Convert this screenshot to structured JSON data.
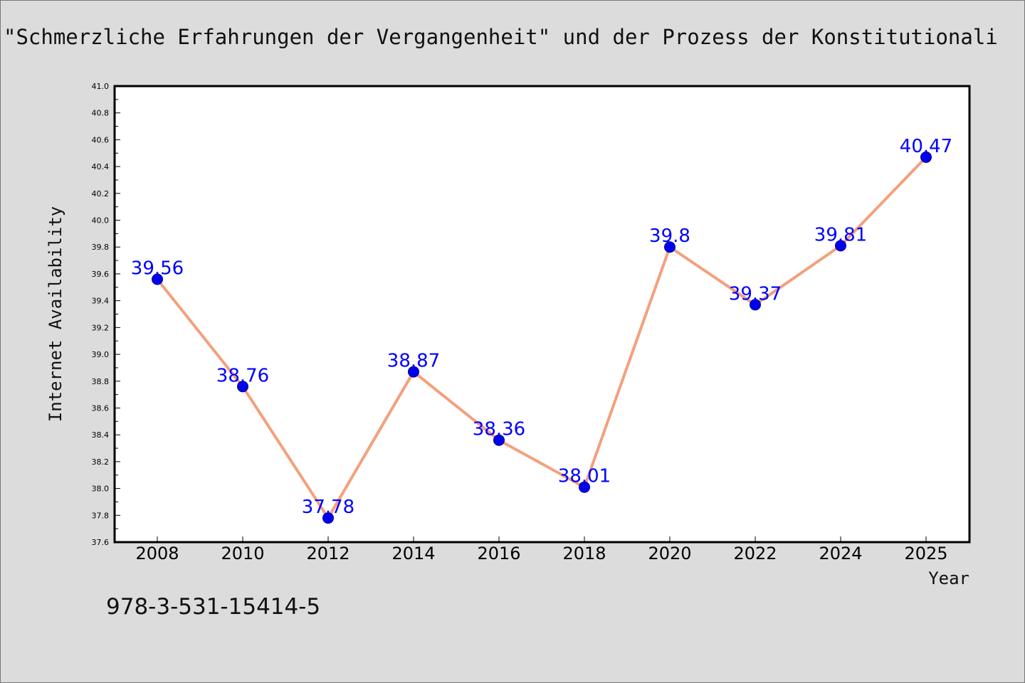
{
  "chart_data": {
    "type": "line",
    "title": "\"Schmerzliche Erfahrungen der Vergangenheit\" und der Prozess der Konstitutionali",
    "xlabel": "Year",
    "ylabel": "Internet Availability",
    "x": [
      "2008",
      "2010",
      "2012",
      "2014",
      "2016",
      "2018",
      "2020",
      "2022",
      "2024",
      "2025"
    ],
    "series": [
      {
        "values": [
          39.56,
          38.76,
          37.78,
          38.87,
          38.36,
          38.01,
          39.8,
          39.37,
          39.81,
          40.47
        ]
      }
    ],
    "data_labels": [
      "39.56",
      "38.76",
      "37.78",
      "38.87",
      "38.36",
      "38.01",
      "39.8",
      "39.37",
      "39.81",
      "40.47"
    ],
    "ylim": [
      37.6,
      41.0
    ],
    "yticks": [
      "37.6",
      "37.8",
      "38.0",
      "38.2",
      "38.4",
      "38.6",
      "38.8",
      "39.0",
      "39.2",
      "39.4",
      "39.6",
      "39.8",
      "40.0",
      "40.2",
      "40.4",
      "40.6",
      "40.8",
      "41.0"
    ],
    "grid": false,
    "colors": {
      "line": "#f4a07c",
      "marker": "#0000ee",
      "label": "#0000ff",
      "background": "#dcdcdc",
      "plot_background": "#ffffff"
    }
  },
  "footer": {
    "isbn": "978-3-531-15414-5"
  }
}
